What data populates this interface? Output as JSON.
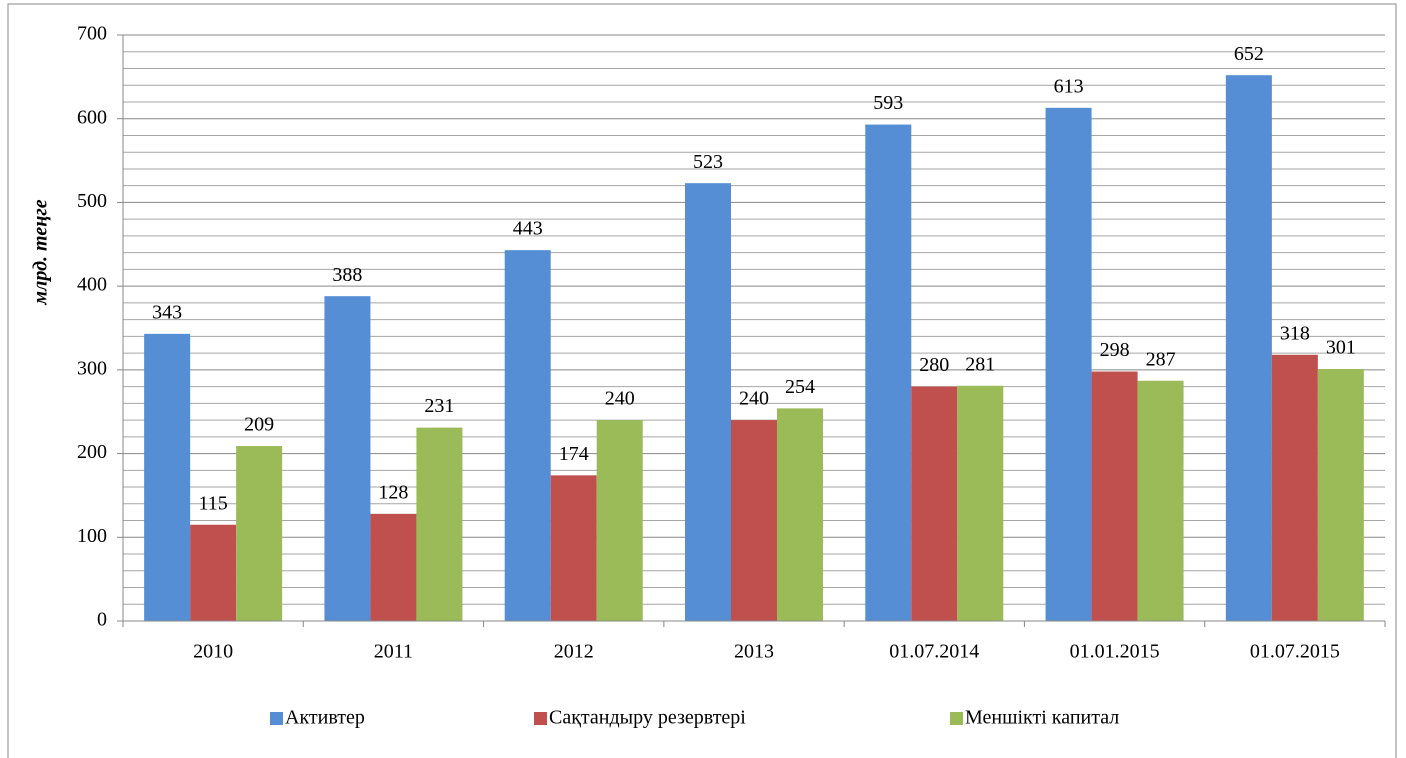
{
  "chart_data": {
    "type": "bar",
    "y_label": "млрд. теңге",
    "categories": [
      "2010",
      "2011",
      "2012",
      "2013",
      "01.07.2014",
      "01.01.2015",
      "01.07.2015"
    ],
    "series": [
      {
        "name": "Активтер",
        "color": "#558ed5",
        "values": [
          343,
          388,
          443,
          523,
          593,
          613,
          652
        ]
      },
      {
        "name": "Сақтандыру резервтері",
        "color": "#c0504d",
        "values": [
          115,
          128,
          174,
          240,
          280,
          298,
          318
        ]
      },
      {
        "name": "Меншікті капитал",
        "color": "#9bbb59",
        "values": [
          209,
          231,
          240,
          254,
          281,
          287,
          301
        ]
      }
    ],
    "ylim": [
      0,
      700
    ],
    "yticks": [
      0,
      100,
      200,
      300,
      400,
      500,
      600,
      700
    ],
    "minor_yticks": [
      20,
      40,
      60,
      80,
      120,
      140,
      160,
      180,
      220,
      240,
      260,
      280,
      320,
      340,
      360,
      380,
      420,
      440,
      460,
      480,
      520,
      540,
      560,
      580,
      620,
      640,
      660,
      680
    ],
    "grid": true,
    "legend": "bottom"
  }
}
